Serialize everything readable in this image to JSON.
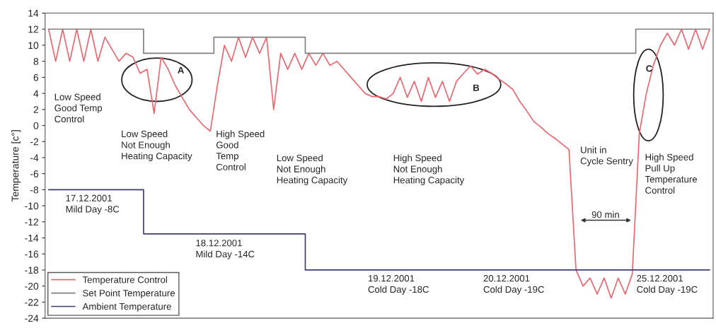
{
  "chart_data": {
    "type": "line",
    "ylabel": "Temperature [c°]",
    "categories": [
      null,
      null,
      null,
      null,
      null,
      null,
      null,
      null,
      null,
      null,
      null,
      null,
      null,
      null,
      null,
      null,
      null,
      null,
      null,
      null,
      null,
      null,
      null,
      null,
      null,
      null,
      null,
      null,
      null,
      null,
      null,
      null,
      null,
      null,
      null,
      null,
      null,
      null,
      null,
      null,
      null,
      null,
      null,
      null,
      null,
      null,
      null,
      null,
      null,
      null,
      null,
      null,
      null,
      null,
      null,
      null,
      null,
      null,
      null,
      null,
      null,
      null,
      null,
      null,
      null,
      null,
      null,
      null,
      null,
      null,
      null,
      null,
      null,
      null,
      null,
      null,
      null,
      null,
      null,
      null,
      null,
      null,
      null,
      null,
      null,
      null,
      null,
      null,
      null,
      null,
      null,
      null,
      null,
      null,
      null
    ],
    "series": [
      {
        "name": "Temperature Control",
        "color": "#f0646e",
        "values": [
          12,
          8,
          12,
          8,
          12,
          8,
          12,
          8,
          11,
          9.5,
          8,
          9,
          8.5,
          6.5,
          7,
          1.5,
          8.5,
          7,
          5,
          3.5,
          2,
          1,
          0,
          -0.7,
          5,
          10,
          8,
          11,
          8.5,
          11,
          9,
          11,
          2,
          9,
          7,
          9,
          7,
          9,
          7.5,
          9,
          7.5,
          8,
          7,
          6,
          5,
          4,
          3.6,
          3.6,
          3.3,
          4,
          6,
          3.5,
          5.5,
          3,
          6,
          3.5,
          5.5,
          3,
          5.5,
          6.5,
          7.4,
          6.4,
          7,
          6.5,
          5.8,
          5.2,
          4.5,
          3,
          1.8,
          0.5,
          -0.2,
          -1,
          -1.6,
          -2.3,
          -3,
          -18,
          -20,
          -19,
          -21,
          -19,
          -21.5,
          -19,
          -21,
          -18.5,
          -1,
          4,
          7.5,
          10,
          11.5,
          10,
          12,
          9.5,
          12,
          9.5,
          12
        ]
      },
      {
        "name": "Set Point Temperature",
        "type": "step",
        "color": "#808080",
        "values": [
          12,
          12,
          12,
          12,
          12,
          12,
          12,
          12,
          12,
          12,
          12,
          12,
          12,
          12,
          9,
          9,
          9,
          9,
          9,
          9,
          9,
          9,
          9,
          9,
          11,
          11,
          11,
          11,
          11,
          11,
          11,
          11,
          11,
          11,
          11,
          11,
          11,
          9,
          9,
          9,
          9,
          9,
          9,
          9,
          9,
          9,
          9,
          9,
          9,
          9,
          9,
          9,
          9,
          9,
          9,
          9,
          9,
          9,
          9,
          9,
          9,
          9,
          9,
          9,
          9,
          9,
          9,
          9,
          9,
          9,
          9,
          9,
          9,
          9,
          9,
          9,
          9,
          9,
          9,
          9,
          9,
          9,
          9,
          9,
          12,
          12,
          12,
          12,
          12,
          12,
          12,
          12,
          12,
          12,
          12
        ]
      },
      {
        "name": "Ambient Temperature",
        "type": "step",
        "color": "#3c3c6e",
        "values": [
          -8,
          -8,
          -8,
          -8,
          -8,
          -8,
          -8,
          -8,
          -8,
          -8,
          -8,
          -8,
          -8,
          -8,
          -13.5,
          -13.5,
          -13.5,
          -13.5,
          -13.5,
          -13.5,
          -13.5,
          -13.5,
          -13.5,
          -13.5,
          -13.5,
          -13.5,
          -13.5,
          -13.5,
          -13.5,
          -13.5,
          -13.5,
          -13.5,
          -13.5,
          -13.5,
          -13.5,
          -13.5,
          -13.5,
          -18,
          -18,
          -18,
          -18,
          -18,
          -18,
          -18,
          -18,
          -18,
          -18,
          -18,
          -18,
          -18,
          -18,
          -18,
          -18,
          -18,
          -18,
          -18,
          -18,
          -18,
          -18,
          -18,
          -18,
          -18,
          -18,
          -18,
          -18,
          -18,
          -18,
          -18,
          -18,
          -18,
          -18,
          -18,
          -18,
          -18,
          -18,
          -18,
          -18,
          -18,
          -18,
          -18,
          -18,
          -18,
          -18,
          -18,
          -18,
          -18,
          -18,
          -18,
          -18,
          -18,
          -18,
          -18,
          -18,
          -18,
          -18
        ]
      }
    ],
    "ylim": [
      -24,
      14
    ],
    "yticks": [
      -24,
      -22,
      -20,
      -18,
      -16,
      -14,
      -12,
      -10,
      -8,
      -6,
      -4,
      -2,
      0,
      2,
      4,
      6,
      8,
      10,
      12,
      14
    ],
    "tick_labels": "y",
    "grid": false,
    "legend": "bottom left",
    "marker": "none",
    "line_style": "solid",
    "annotations": [
      "Low Speed\nGood Temp\nControl",
      "Low Speed\nNot Enough\nHeating Capacity",
      "High Speed\nGood\nTemp\nControl",
      "Low Speed\nNot Enough\nHeating Capacity",
      "High Speed\nNot Enough\nHeating Capacity",
      "Unit in\nCycle Sentry",
      "High Speed\nPull Up\nTemperature\nControl",
      "17.12.2001\nMild Day -8C",
      "18.12.2001\nMild Day -14C",
      "19.12.2001\nCold Day -18C",
      "20.12.2001\nCold Day -19C",
      "25.12.2001\nCold Day -19C",
      "A",
      "B",
      "C",
      "90 min"
    ]
  }
}
